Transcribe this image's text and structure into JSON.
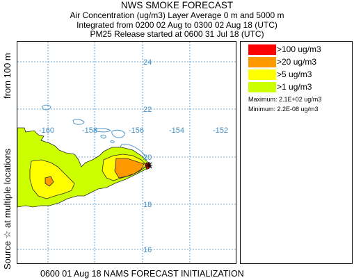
{
  "titles": {
    "main": "NWS SMOKE FORECAST",
    "line2": "Air Concentration (ug/m3) Layer Average    0 m and  5000 m",
    "line3": "Integrated from 0200 02 Aug to 0300 02 Aug 18 (UTC)",
    "line4": "PM25 Release started at 0600 31 Jul 18 (UTC)"
  },
  "side_label": {
    "source": "Source ☆",
    "locations": "at multiple locations",
    "height": "from   100 m"
  },
  "footer": "0600 01 Aug 18 NAMS FORECAST INITIALIZATION",
  "map": {
    "longitude_labels": [
      "-160",
      "-158",
      "-156",
      "-154",
      "-152"
    ],
    "latitude_labels": [
      "24",
      "22",
      "20",
      "18",
      "16"
    ],
    "colors": {
      "grid": "#4a90c8",
      "label": "#3f8fc7",
      "coastline": "#3f8fc7",
      "contour": "#2a2a2a"
    },
    "source_marker": "star-icon"
  },
  "legend": {
    "items": [
      {
        "label": ">100 ug/m3",
        "color": "#ff0000"
      },
      {
        "label": ">20 ug/m3",
        "color": "#ff9900"
      },
      {
        "label": ">5 ug/m3",
        "color": "#ffff00"
      },
      {
        "label": ">1 ug/m3",
        "color": "#ccff00"
      }
    ],
    "maximum": "Maximum: 2.1E+02 ug/m3",
    "minimum": "Minimum: 2.2E-08 ug/m3"
  }
}
